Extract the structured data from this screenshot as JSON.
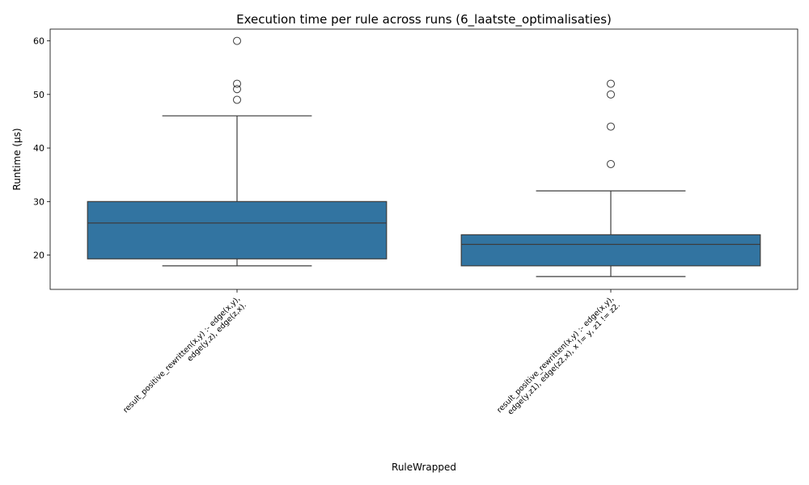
{
  "chart_data": {
    "type": "box",
    "title": "Execution time per rule across runs (6_laatste_optimalisaties)",
    "xlabel": "RuleWrapped",
    "ylabel": "Runtime (µs)",
    "ylim": [
      13.6,
      62.2
    ],
    "yticks": [
      20,
      30,
      40,
      50,
      60
    ],
    "grid": false,
    "box_color": "#3274a1",
    "edge_color": "#3d3d3d",
    "categories": [
      {
        "label_lines": [
          "result_positive_rewritten(x,y) :-     edge(x,y),",
          "edge(y,z),     edge(z,x)."
        ],
        "whisker_low": 18,
        "q1": 19.3,
        "median": 26,
        "q3": 30,
        "whisker_high": 46,
        "outliers": [
          49,
          51,
          52,
          60
        ]
      },
      {
        "label_lines": [
          "result_positive_rewritten(x,y) :-     edge(x,y),",
          "edge(y,z1),     edge(z2,x),     x != y,     z1 != z2."
        ],
        "whisker_low": 16,
        "q1": 18,
        "median": 22,
        "q3": 23.8,
        "whisker_high": 32,
        "outliers": [
          37,
          44,
          50,
          52
        ]
      }
    ]
  }
}
